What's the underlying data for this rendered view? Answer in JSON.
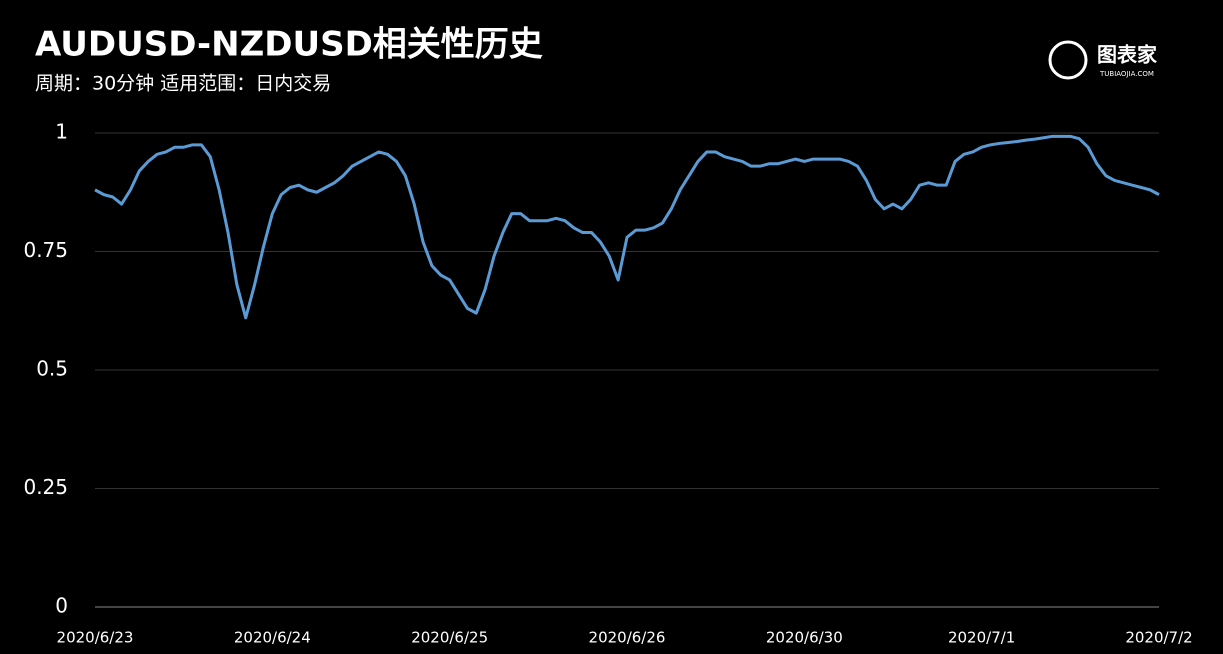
{
  "chart_data": {
    "type": "line",
    "title": "AUDUSD-NZDUSD相关性历史",
    "subtitle": "周期：30分钟  适用范围：日内交易",
    "logo": "图表家",
    "logo_sub": "TUBIAOJIA.COM",
    "categories": [
      "2020/6/23",
      null,
      null,
      null,
      null,
      null,
      null,
      null,
      null,
      null,
      null,
      null,
      null,
      null,
      null,
      null,
      null,
      null,
      null,
      null,
      "2020/6/24",
      null,
      null,
      null,
      null,
      null,
      null,
      null,
      null,
      null,
      null,
      null,
      null,
      null,
      null,
      null,
      null,
      null,
      null,
      null,
      "2020/6/25",
      null,
      null,
      null,
      null,
      null,
      null,
      null,
      null,
      null,
      null,
      null,
      null,
      null,
      null,
      null,
      null,
      null,
      null,
      null,
      "2020/6/26",
      null,
      null,
      null,
      null,
      null,
      null,
      null,
      null,
      null,
      null,
      null,
      null,
      null,
      null,
      null,
      null,
      null,
      null,
      null,
      "2020/6/30",
      null,
      null,
      null,
      null,
      null,
      null,
      null,
      null,
      null,
      null,
      null,
      null,
      null,
      null,
      null,
      null,
      null,
      null,
      null,
      "2020/7/1",
      null,
      null,
      null,
      null,
      null,
      null,
      null,
      null,
      null,
      null,
      null,
      null,
      null,
      null,
      null,
      null,
      null,
      null,
      null,
      "2020/7/2"
    ],
    "series": [
      {
        "name": "相关性",
        "color": "#5b9bd5",
        "values": [
          0.88,
          0.87,
          0.865,
          0.85,
          0.88,
          0.92,
          0.94,
          0.955,
          0.96,
          0.97,
          0.97,
          0.975,
          0.975,
          0.95,
          0.88,
          0.79,
          0.68,
          0.61,
          0.68,
          0.76,
          0.83,
          0.87,
          0.885,
          0.89,
          0.88,
          0.875,
          0.885,
          0.895,
          0.91,
          0.93,
          0.94,
          0.95,
          0.96,
          0.955,
          0.94,
          0.91,
          0.85,
          0.77,
          0.72,
          0.7,
          0.69,
          0.66,
          0.63,
          0.62,
          0.67,
          0.74,
          0.79,
          0.83,
          0.83,
          0.815,
          0.815,
          0.815,
          0.82,
          0.815,
          0.8,
          0.79,
          0.79,
          0.77,
          0.74,
          0.69,
          0.78,
          0.795,
          0.795,
          0.8,
          0.81,
          0.84,
          0.88,
          0.91,
          0.94,
          0.96,
          0.96,
          0.95,
          0.945,
          0.94,
          0.93,
          0.93,
          0.935,
          0.935,
          0.94,
          0.945,
          0.94,
          0.945,
          0.945,
          0.945,
          0.945,
          0.94,
          0.93,
          0.9,
          0.86,
          0.84,
          0.85,
          0.84,
          0.86,
          0.89,
          0.895,
          0.89,
          0.89,
          0.94,
          0.955,
          0.96,
          0.97,
          0.975,
          0.978,
          0.98,
          0.982,
          0.985,
          0.987,
          0.99,
          0.993,
          0.993,
          0.993,
          0.988,
          0.97,
          0.935,
          0.91,
          0.9,
          0.895,
          0.89,
          0.885,
          0.88,
          0.87
        ]
      }
    ],
    "ylim": [
      0,
      1
    ],
    "yticks": [
      0,
      0.25,
      0.5,
      0.75,
      1
    ],
    "grid": true
  }
}
